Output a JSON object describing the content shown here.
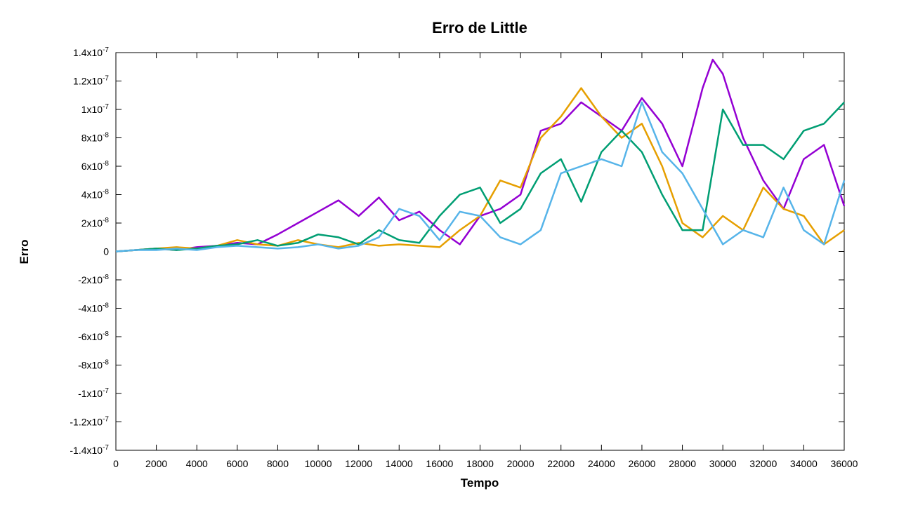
{
  "chart_data": {
    "type": "line",
    "title": "Erro de Little",
    "xlabel": "Tempo",
    "ylabel": "Erro",
    "xlim": [
      0,
      36000
    ],
    "ylim": [
      -1.4e-07,
      1.4e-07
    ],
    "grid": false,
    "legend": "none",
    "x_ticks": [
      "0",
      "2000",
      "4000",
      "6000",
      "8000",
      "10000",
      "12000",
      "14000",
      "16000",
      "18000",
      "20000",
      "22000",
      "24000",
      "26000",
      "28000",
      "30000",
      "32000",
      "34000",
      "36000"
    ],
    "y_ticks": [
      {
        "value": 1.4e-07,
        "mant": "1.4x10",
        "exp": "-7"
      },
      {
        "value": 1.2e-07,
        "mant": "1.2x10",
        "exp": "-7"
      },
      {
        "value": 1e-07,
        "mant": "1x10",
        "exp": "-7"
      },
      {
        "value": 8e-08,
        "mant": "8x10",
        "exp": "-8"
      },
      {
        "value": 6e-08,
        "mant": "6x10",
        "exp": "-8"
      },
      {
        "value": 4e-08,
        "mant": "4x10",
        "exp": "-8"
      },
      {
        "value": 2e-08,
        "mant": "2x10",
        "exp": "-8"
      },
      {
        "value": 0,
        "mant": "0",
        "exp": ""
      },
      {
        "value": -2e-08,
        "mant": "-2x10",
        "exp": "-8"
      },
      {
        "value": -4e-08,
        "mant": "-4x10",
        "exp": "-8"
      },
      {
        "value": -6e-08,
        "mant": "-6x10",
        "exp": "-8"
      },
      {
        "value": -8e-08,
        "mant": "-8x10",
        "exp": "-8"
      },
      {
        "value": -1e-07,
        "mant": "-1x10",
        "exp": "-7"
      },
      {
        "value": -1.2e-07,
        "mant": "-1.2x10",
        "exp": "-7"
      },
      {
        "value": -1.4e-07,
        "mant": "-1.4x10",
        "exp": "-7"
      }
    ],
    "series": [
      {
        "color": "#9400d3",
        "x": [
          0,
          1000,
          2000,
          3000,
          4000,
          5000,
          6000,
          7000,
          8000,
          9000,
          10000,
          11000,
          12000,
          13000,
          14000,
          15000,
          16000,
          17000,
          18000,
          19000,
          20000,
          21000,
          22000,
          23000,
          24000,
          25000,
          26000,
          27000,
          28000,
          29000,
          29500,
          30000,
          31000,
          32000,
          33000,
          34000,
          35000,
          36000
        ],
        "y": [
          0,
          1e-09,
          2e-09,
          1e-09,
          3e-09,
          4e-09,
          6e-09,
          5e-09,
          1.2e-08,
          2e-08,
          2.8e-08,
          3.6e-08,
          2.5e-08,
          3.8e-08,
          2.2e-08,
          2.8e-08,
          1.5e-08,
          5e-09,
          2.5e-08,
          3e-08,
          4e-08,
          8.5e-08,
          9e-08,
          1.05e-07,
          9.5e-08,
          8.5e-08,
          1.08e-07,
          9e-08,
          6e-08,
          1.15e-07,
          1.35e-07,
          1.25e-07,
          8e-08,
          5e-08,
          3e-08,
          6.5e-08,
          7.5e-08,
          3.2e-08
        ]
      },
      {
        "color": "#e69f00",
        "x": [
          0,
          1000,
          2000,
          3000,
          4000,
          5000,
          6000,
          7000,
          8000,
          9000,
          10000,
          11000,
          12000,
          13000,
          14000,
          15000,
          16000,
          17000,
          18000,
          19000,
          20000,
          21000,
          22000,
          23000,
          24000,
          25000,
          26000,
          27000,
          28000,
          29000,
          30000,
          31000,
          32000,
          33000,
          34000,
          35000,
          36000
        ],
        "y": [
          0,
          1e-09,
          2e-09,
          3e-09,
          2e-09,
          4e-09,
          8e-09,
          5e-09,
          4e-09,
          8e-09,
          5e-09,
          3e-09,
          6e-09,
          4e-09,
          5e-09,
          4e-09,
          3e-09,
          1.5e-08,
          2.5e-08,
          5e-08,
          4.5e-08,
          8e-08,
          9.5e-08,
          1.15e-07,
          9.5e-08,
          8e-08,
          9e-08,
          6e-08,
          2e-08,
          1e-08,
          2.5e-08,
          1.5e-08,
          4.5e-08,
          3e-08,
          2.5e-08,
          5e-09,
          1.5e-08
        ]
      },
      {
        "color": "#009e73",
        "x": [
          0,
          1000,
          2000,
          3000,
          4000,
          5000,
          6000,
          7000,
          8000,
          9000,
          10000,
          11000,
          12000,
          13000,
          14000,
          15000,
          16000,
          17000,
          18000,
          19000,
          20000,
          21000,
          22000,
          23000,
          24000,
          25000,
          26000,
          27000,
          28000,
          29000,
          30000,
          31000,
          32000,
          33000,
          34000,
          35000,
          36000
        ],
        "y": [
          0,
          1e-09,
          2e-09,
          1e-09,
          2e-09,
          4e-09,
          5e-09,
          8e-09,
          4e-09,
          6e-09,
          1.2e-08,
          1e-08,
          5e-09,
          1.5e-08,
          8e-09,
          6e-09,
          2.5e-08,
          4e-08,
          4.5e-08,
          2e-08,
          3e-08,
          5.5e-08,
          6.5e-08,
          3.5e-08,
          7e-08,
          8.5e-08,
          7e-08,
          4e-08,
          1.5e-08,
          1.5e-08,
          1e-07,
          7.5e-08,
          7.5e-08,
          6.5e-08,
          8.5e-08,
          9e-08,
          1.05e-07
        ]
      },
      {
        "color": "#56b4e9",
        "x": [
          0,
          1000,
          2000,
          3000,
          4000,
          5000,
          6000,
          7000,
          8000,
          9000,
          10000,
          11000,
          12000,
          13000,
          14000,
          15000,
          16000,
          17000,
          18000,
          19000,
          20000,
          21000,
          22000,
          23000,
          24000,
          25000,
          26000,
          27000,
          28000,
          29000,
          30000,
          31000,
          32000,
          33000,
          34000,
          35000,
          36000
        ],
        "y": [
          0,
          1e-09,
          1e-09,
          2e-09,
          1e-09,
          3e-09,
          4e-09,
          3e-09,
          2e-09,
          3e-09,
          5e-09,
          2e-09,
          4e-09,
          1e-08,
          3e-08,
          2.5e-08,
          8e-09,
          2.8e-08,
          2.5e-08,
          1e-08,
          5e-09,
          1.5e-08,
          5.5e-08,
          6e-08,
          6.5e-08,
          6e-08,
          1.05e-07,
          7e-08,
          5.5e-08,
          3e-08,
          5e-09,
          1.5e-08,
          1e-08,
          4.5e-08,
          1.5e-08,
          5e-09,
          5e-08
        ]
      }
    ]
  }
}
